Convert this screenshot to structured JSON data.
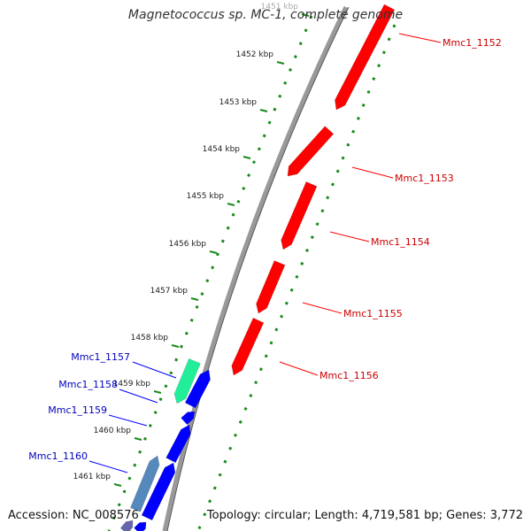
{
  "title": "Magnetococcus sp. MC-1, complete genome",
  "accession": "Accession: NC_008576",
  "topology": "Topology: circular; Length: 4,719,581 bp; Genes: 3,772",
  "ticks": [
    "1451 kbp",
    "1452 kbp",
    "1453 kbp",
    "1454 kbp",
    "1455 kbp",
    "1456 kbp",
    "1457 kbp",
    "1458 kbp",
    "1459 kbp",
    "1460 kbp",
    "1461 kbp"
  ],
  "forward_genes": [
    "Mmc1_1152",
    "Mmc1_1153",
    "Mmc1_1154",
    "Mmc1_1155",
    "Mmc1_1156"
  ],
  "reverse_genes": [
    "Mmc1_1157",
    "Mmc1_1158",
    "Mmc1_1159",
    "Mmc1_1160"
  ],
  "colors": {
    "forward_gene": "#ff0000",
    "reverse_gene": "#0000ff",
    "reverse_gene_alt1": "#22ee99",
    "reverse_gene_alt2": "#5588bb",
    "backbone": "#888888",
    "tick": "#1a8a1a",
    "forward_label": "#cc0000",
    "reverse_label": "#0000bb"
  }
}
